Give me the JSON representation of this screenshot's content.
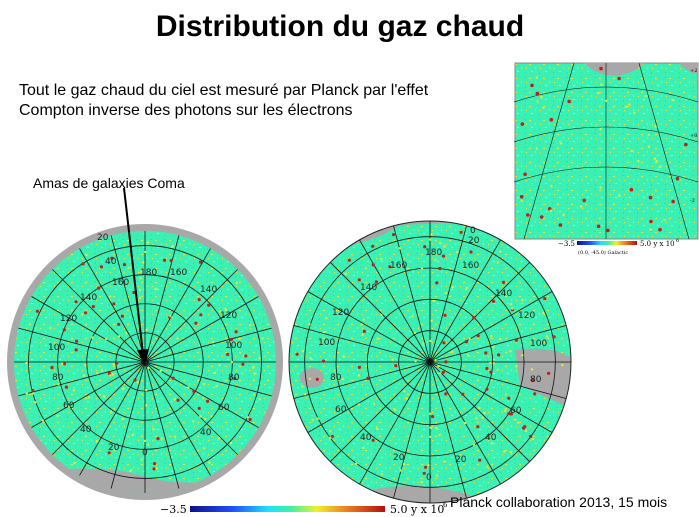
{
  "slide": {
    "title": "Distribution du gaz chaud",
    "subtitle_line1": "Tout le gaz chaud du ciel est mesuré par Planck par l'effet",
    "subtitle_line2": "Compton inverse des photons sur les électrons",
    "annotation": "Amas de galaxies Coma",
    "credit": "Planck collaboration 2013, 15 mois"
  },
  "colorbar": {
    "min_label": "−3.5",
    "max_label": "5.0 y x 10",
    "max_exponent": "6"
  },
  "inset": {
    "min_label": "−3.5",
    "max_label": "5.0 y x 10",
    "max_exponent": "6",
    "coords_label": "(0.0, -45.0) Galactic"
  },
  "maps": {
    "left_lat_labels": [
      "20",
      "40",
      "60",
      "80",
      "100",
      "120",
      "140",
      "160"
    ],
    "right_lat_labels": [
      "20",
      "40",
      "60",
      "80",
      "100",
      "120",
      "140",
      "160"
    ],
    "left_top_lon_label": "180",
    "left_bottom_lon_label": "0",
    "right_top_lon_label": "180",
    "right_bottom_lon_label": "0",
    "right_edge_label": "0",
    "inset_side_labels": [
      "+2",
      "+0",
      "-2"
    ]
  },
  "colors": {
    "map_base": "#3cf0b4",
    "map_cold": "#2fd8d8",
    "hot_yellow": "#f2e630",
    "hot_red": "#cc1a1a",
    "mask_gray": "#a8a8a8"
  }
}
